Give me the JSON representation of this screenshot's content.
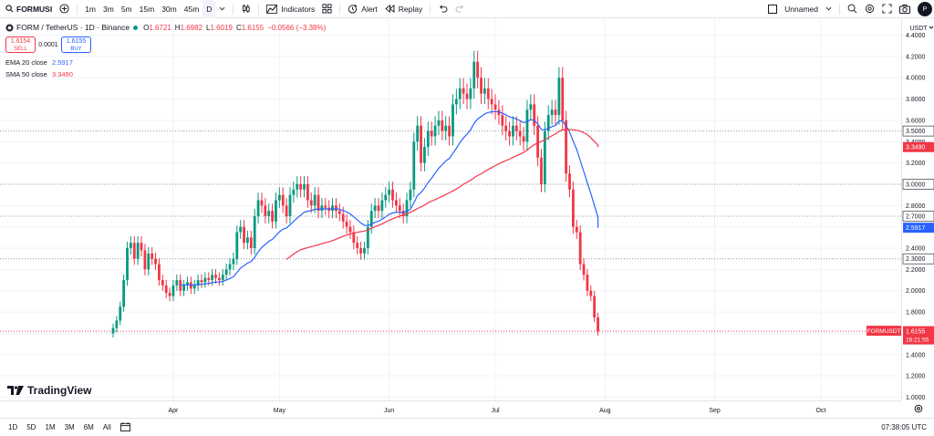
{
  "toolbar": {
    "symbol": "FORMUSI",
    "intervals": [
      "1m",
      "3m",
      "5m",
      "15m",
      "30m",
      "45m",
      "D"
    ],
    "indicators_label": "Indicators",
    "alert_label": "Alert",
    "replay_label": "Replay",
    "layout_name": "Unnamed",
    "avatar": "P"
  },
  "legend": {
    "title": "FORM / TetherUS · 1D · Binance",
    "o_label": "O",
    "o": "1.6721",
    "h_label": "H",
    "h": "1.6982",
    "l_label": "L",
    "l": "1.6019",
    "c_label": "C",
    "c": "1.6155",
    "change": "−0.0566 (−3.38%)",
    "sell_price": "1.6154",
    "sell_label": "SELL",
    "spread": "0.0001",
    "buy_price": "1.6155",
    "buy_label": "BUY",
    "ema_label": "EMA 20 close",
    "ema_value": "2.5917",
    "sma_label": "SMA 50 close",
    "sma_value": "3.3490"
  },
  "colors": {
    "up": "#089981",
    "down": "#f23645",
    "ema": "#2962ff",
    "sma": "#f23645",
    "grid": "#f0f3fa",
    "text": "#131722",
    "axis_text": "#131722"
  },
  "bottombar": {
    "ranges": [
      "1D",
      "5D",
      "1M",
      "3M",
      "6M",
      "All"
    ],
    "time": "07:38:05 UTC"
  },
  "brand": "TradingView",
  "chart_data": {
    "type": "candlestick",
    "pair": "FORMUSDT",
    "currency": "USDT",
    "y_ticks": [
      1.0,
      1.2,
      1.4,
      1.6,
      1.8,
      2.0,
      2.2,
      2.4,
      2.6,
      2.8,
      3.0,
      3.2,
      3.4,
      3.6,
      3.8,
      4.0,
      4.2,
      4.4
    ],
    "ylim": [
      0.97,
      4.55
    ],
    "x_ticks": [
      {
        "label": "Apr",
        "index": 17
      },
      {
        "label": "May",
        "index": 47
      },
      {
        "label": "Jun",
        "index": 78
      },
      {
        "label": "Jul",
        "index": 108
      },
      {
        "label": "Aug",
        "index": 139
      },
      {
        "label": "Sep",
        "index": 170
      },
      {
        "label": "Oct",
        "index": 200
      }
    ],
    "last_price_badge": "1.6155",
    "countdown": "16:21:55",
    "price_badges": [
      {
        "label": "3.5000",
        "value": 3.5
      },
      {
        "label": "3.0000",
        "value": 3.0
      },
      {
        "label": "2.7000",
        "value": 2.7
      },
      {
        "label": "2.3000",
        "value": 2.3
      }
    ],
    "horizontal_lines": [
      3.5,
      3.0,
      2.7,
      2.3
    ],
    "ema_value": 2.5917,
    "sma_value": 3.349,
    "closes": [
      1.65,
      1.72,
      1.85,
      2.1,
      2.4,
      2.45,
      2.3,
      2.45,
      2.38,
      2.2,
      2.35,
      2.3,
      2.25,
      2.1,
      2.05,
      1.98,
      1.95,
      2.05,
      2.1,
      2.0,
      2.05,
      2.08,
      2.02,
      2.05,
      2.1,
      2.08,
      2.12,
      2.1,
      2.15,
      2.12,
      2.1,
      2.15,
      2.2,
      2.25,
      2.3,
      2.55,
      2.6,
      2.45,
      2.5,
      2.4,
      2.7,
      2.85,
      2.8,
      2.7,
      2.75,
      2.65,
      2.85,
      2.9,
      2.8,
      2.7,
      2.9,
      2.95,
      3.0,
      2.95,
      3.0,
      2.85,
      2.8,
      2.9,
      2.75,
      2.8,
      2.78,
      2.75,
      2.8,
      2.75,
      2.72,
      2.65,
      2.6,
      2.55,
      2.45,
      2.4,
      2.35,
      2.4,
      2.6,
      2.75,
      2.8,
      2.75,
      2.85,
      2.9,
      2.95,
      2.85,
      2.8,
      2.75,
      2.7,
      2.85,
      2.95,
      3.4,
      3.55,
      3.2,
      3.35,
      3.5,
      3.45,
      3.55,
      3.6,
      3.5,
      3.55,
      3.45,
      3.75,
      3.8,
      3.9,
      3.85,
      3.8,
      3.9,
      4.15,
      4.0,
      3.85,
      3.9,
      3.8,
      3.75,
      3.7,
      3.65,
      3.55,
      3.5,
      3.45,
      3.55,
      3.5,
      3.45,
      3.4,
      3.7,
      3.75,
      3.55,
      3.25,
      3.0,
      3.5,
      3.65,
      3.7,
      3.65,
      4.0,
      3.6,
      3.1,
      2.95,
      2.6,
      2.55,
      2.25,
      2.15,
      2.0,
      1.95,
      1.75,
      1.62
    ]
  }
}
